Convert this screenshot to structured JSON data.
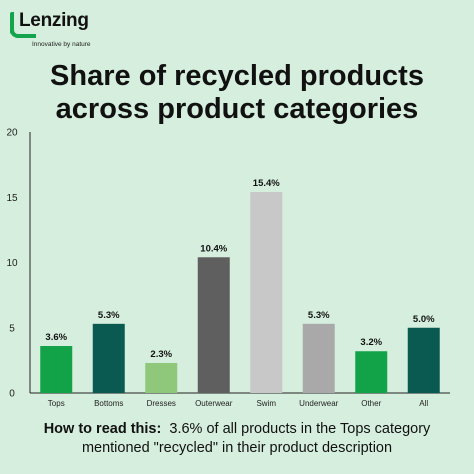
{
  "brand": {
    "name": "Lenzing",
    "tagline": "Innovative by nature",
    "color": "#14a44d"
  },
  "header": {
    "title_line1": "Share of recycled products",
    "title_line2": "across product categories"
  },
  "footer": {
    "lead": "How to read this:",
    "line1_rest": "3.6% of all products in the Tops category",
    "line2": "mentioned \"recycled\" in their product description"
  },
  "chart_data": {
    "type": "bar",
    "categories": [
      "Tops",
      "Bottoms",
      "Dresses",
      "Outerwear",
      "Swim",
      "Underwear",
      "Other",
      "All"
    ],
    "values": [
      3.6,
      5.3,
      2.3,
      10.4,
      15.4,
      5.3,
      3.2,
      5.0
    ],
    "data_labels": [
      "3.6%",
      "5.3%",
      "2.3%",
      "10.4%",
      "15.4%",
      "5.3%",
      "3.2%",
      "5.0%"
    ],
    "colors": [
      "#12a247",
      "#0a5a52",
      "#8fc87a",
      "#5f5f5f",
      "#c8c8c8",
      "#a9a9a9",
      "#12a247",
      "#0a5a52"
    ],
    "ylim": [
      0,
      20
    ],
    "yticks": [
      0,
      5,
      10,
      15,
      20
    ],
    "grid": false,
    "title": "Share of recycled products across product categories",
    "xlabel": "",
    "ylabel": ""
  }
}
